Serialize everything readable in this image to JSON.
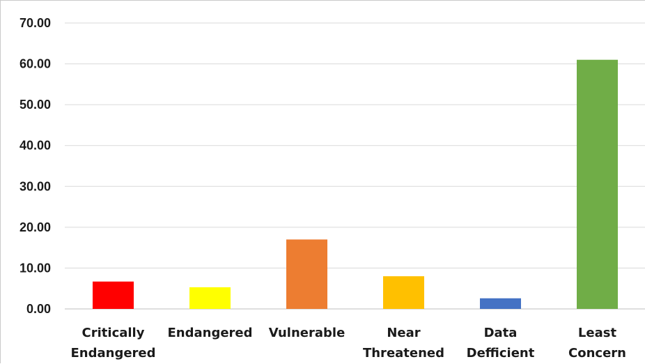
{
  "chart_data": {
    "type": "bar",
    "categories": [
      [
        "Critically",
        "Endangered"
      ],
      [
        "Endangered"
      ],
      [
        "Vulnerable"
      ],
      [
        "Near",
        "Threatened"
      ],
      [
        "Data",
        "Defficient"
      ],
      [
        "Least",
        "Concern"
      ]
    ],
    "values": [
      6.7,
      5.3,
      17.0,
      8.0,
      2.6,
      61.0
    ],
    "colors": [
      "#ff0000",
      "#ffff00",
      "#ed7d31",
      "#ffc000",
      "#4472c4",
      "#70ad47"
    ],
    "y_ticks": [
      "0.00",
      "10.00",
      "20.00",
      "30.00",
      "40.00",
      "50.00",
      "60.00",
      "70.00"
    ],
    "ylim": [
      0,
      70
    ],
    "grid": true,
    "legend": "none"
  }
}
